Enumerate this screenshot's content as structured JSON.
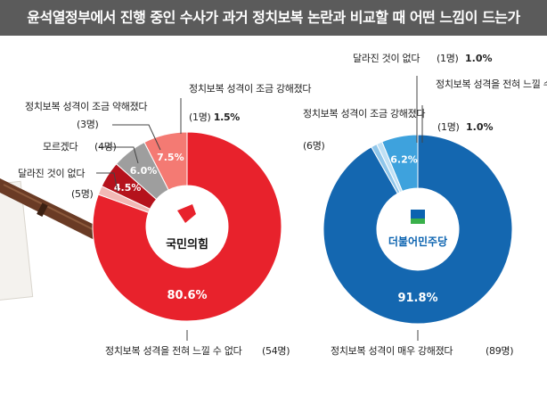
{
  "title": "윤석열정부에서 진행 중인 수사가 과거 정치보복 논란과 비교할 때 어떤 느낌이 드는가",
  "chart_data": [
    {
      "type": "pie",
      "variant": "donut",
      "party": "국민의힘",
      "categories": [
        "정치보복 성격을 전혀 느낄 수 없다",
        "달라진 것이 없다",
        "모르겠다",
        "정치보복 성격이 조금 약해졌다",
        "정치보복 성격이 조금 강해졌다"
      ],
      "values": [
        80.6,
        7.5,
        6.0,
        4.5,
        1.5
      ],
      "value_labels": [
        "80.6%",
        "7.5%",
        "6.0%",
        "4.5%",
        "1.5%"
      ],
      "counts": [
        "(54명)",
        "(5명)",
        "(4명)",
        "(3명)",
        "(1명)"
      ],
      "colors": [
        "#e8222c",
        "#f47a73",
        "#9e9e9e",
        "#b5121c",
        "#f2b8b5"
      ],
      "center_logo_text": "국민의힘",
      "logo_color": "#e8222c"
    },
    {
      "type": "pie",
      "variant": "donut",
      "party": "더불어민주당",
      "categories": [
        "정치보복 성격이 매우 강해졌다",
        "정치보복 성격이 조금 강해졌다",
        "달라진 것이 없다",
        "정치보복 성격을 전혀 느낄 수 없다"
      ],
      "values": [
        91.8,
        6.2,
        1.0,
        1.0
      ],
      "value_labels": [
        "91.8%",
        "6.2%",
        "1.0%",
        "1.0%"
      ],
      "counts": [
        "(89명)",
        "(6명)",
        "(1명)",
        "(1명)"
      ],
      "colors": [
        "#1467b0",
        "#3ea2dd",
        "#bfe0f4",
        "#8fc6ea"
      ],
      "center_logo_text": "더불어민주당",
      "logo_color": "#0b63b0"
    }
  ]
}
